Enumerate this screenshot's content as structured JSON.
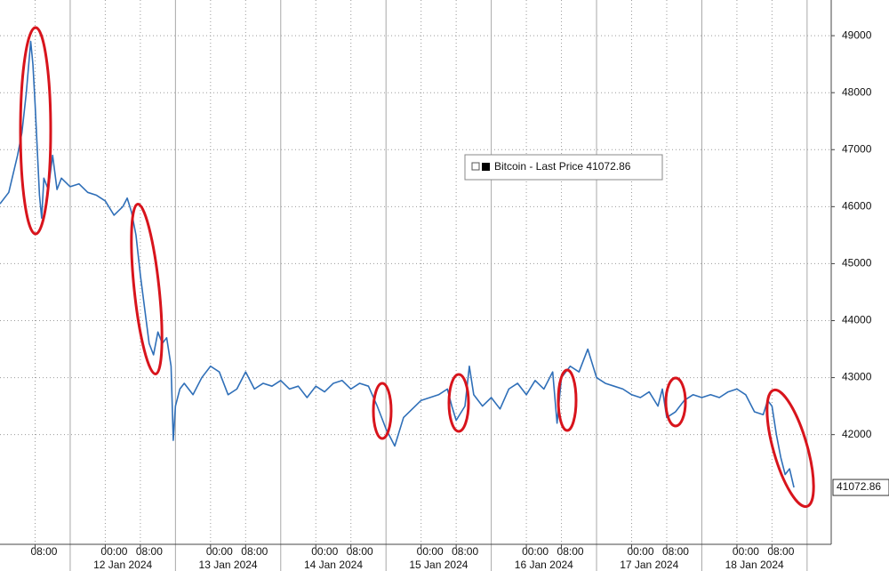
{
  "chart_data": {
    "type": "line",
    "x": [
      "2024-01-11 00:00",
      "2024-01-11 02:00",
      "2024-01-11 04:00",
      "2024-01-11 05:00",
      "2024-01-11 06:00",
      "2024-01-11 07:00",
      "2024-01-11 07:30",
      "2024-01-11 08:00",
      "2024-01-11 09:00",
      "2024-01-11 09:30",
      "2024-01-11 10:00",
      "2024-01-11 11:00",
      "2024-01-11 12:00",
      "2024-01-11 13:00",
      "2024-01-11 14:00",
      "2024-01-11 16:00",
      "2024-01-11 18:00",
      "2024-01-11 20:00",
      "2024-01-11 22:00",
      "2024-01-12 00:00",
      "2024-01-12 02:00",
      "2024-01-12 04:00",
      "2024-01-12 05:00",
      "2024-01-12 06:00",
      "2024-01-12 07:00",
      "2024-01-12 08:00",
      "2024-01-12 09:00",
      "2024-01-12 10:00",
      "2024-01-12 11:00",
      "2024-01-12 12:00",
      "2024-01-12 13:00",
      "2024-01-12 14:00",
      "2024-01-12 15:00",
      "2024-01-12 15:30",
      "2024-01-12 16:00",
      "2024-01-12 17:00",
      "2024-01-12 18:00",
      "2024-01-12 20:00",
      "2024-01-12 22:00",
      "2024-01-13 00:00",
      "2024-01-13 02:00",
      "2024-01-13 04:00",
      "2024-01-13 06:00",
      "2024-01-13 08:00",
      "2024-01-13 10:00",
      "2024-01-13 12:00",
      "2024-01-13 14:00",
      "2024-01-13 16:00",
      "2024-01-13 18:00",
      "2024-01-13 20:00",
      "2024-01-13 22:00",
      "2024-01-14 00:00",
      "2024-01-14 02:00",
      "2024-01-14 04:00",
      "2024-01-14 06:00",
      "2024-01-14 08:00",
      "2024-01-14 10:00",
      "2024-01-14 12:00",
      "2024-01-14 14:00",
      "2024-01-14 16:00",
      "2024-01-14 18:00",
      "2024-01-14 20:00",
      "2024-01-14 22:00",
      "2024-01-15 00:00",
      "2024-01-15 02:00",
      "2024-01-15 04:00",
      "2024-01-15 06:00",
      "2024-01-15 07:00",
      "2024-01-15 08:00",
      "2024-01-15 10:00",
      "2024-01-15 11:00",
      "2024-01-15 12:00",
      "2024-01-15 14:00",
      "2024-01-15 16:00",
      "2024-01-15 18:00",
      "2024-01-15 20:00",
      "2024-01-15 22:00",
      "2024-01-16 00:00",
      "2024-01-16 02:00",
      "2024-01-16 04:00",
      "2024-01-16 06:00",
      "2024-01-16 07:00",
      "2024-01-16 08:00",
      "2024-01-16 10:00",
      "2024-01-16 12:00",
      "2024-01-16 14:00",
      "2024-01-16 16:00",
      "2024-01-16 18:00",
      "2024-01-16 20:00",
      "2024-01-16 22:00",
      "2024-01-17 00:00",
      "2024-01-17 02:00",
      "2024-01-17 04:00",
      "2024-01-17 06:00",
      "2024-01-17 07:00",
      "2024-01-17 08:00",
      "2024-01-17 10:00",
      "2024-01-17 12:00",
      "2024-01-17 14:00",
      "2024-01-17 16:00",
      "2024-01-17 18:00",
      "2024-01-17 20:00",
      "2024-01-17 22:00",
      "2024-01-18 00:00",
      "2024-01-18 02:00",
      "2024-01-18 04:00",
      "2024-01-18 06:00",
      "2024-01-18 07:00",
      "2024-01-18 08:00",
      "2024-01-18 09:00",
      "2024-01-18 10:00",
      "2024-01-18 11:00",
      "2024-01-18 12:00",
      "2024-01-18 13:00"
    ],
    "series": [
      {
        "name": "Bitcoin - Last Price",
        "color": "#2f6fb8",
        "values": [
          46050,
          46250,
          46900,
          47300,
          48000,
          48900,
          48500,
          47800,
          46200,
          45800,
          46500,
          46300,
          46900,
          46300,
          46500,
          46350,
          46400,
          46250,
          46200,
          46100,
          45850,
          46000,
          46150,
          45900,
          45500,
          44800,
          44200,
          43600,
          43400,
          43800,
          43600,
          43700,
          43200,
          41900,
          42500,
          42800,
          42900,
          42700,
          43000,
          43200,
          43100,
          42700,
          42800,
          43100,
          42800,
          42900,
          42850,
          42950,
          42800,
          42850,
          42650,
          42850,
          42750,
          42900,
          42950,
          42800,
          42900,
          42850,
          42500,
          42100,
          41800,
          42300,
          42450,
          42600,
          42650,
          42700,
          42800,
          42500,
          42250,
          42500,
          43200,
          42700,
          42500,
          42650,
          42450,
          42800,
          42900,
          42700,
          42950,
          42800,
          43100,
          42200,
          43000,
          43200,
          43100,
          43500,
          43000,
          42900,
          42850,
          42800,
          42700,
          42650,
          42750,
          42500,
          42800,
          42300,
          42400,
          42600,
          42700,
          42650,
          42700,
          42650,
          42750,
          42800,
          42700,
          42400,
          42350,
          42600,
          42500,
          42000,
          41600,
          41300,
          41400,
          41072.86
        ]
      }
    ],
    "xlim": [
      "2024-01-11 00:00",
      "2024-01-18 21:30"
    ],
    "ylim": [
      40075,
      49626
    ],
    "yticks": [
      42000,
      43000,
      44000,
      45000,
      46000,
      47000,
      48000,
      49000
    ],
    "xticks": [
      {
        "value": "2024-01-11 08:00",
        "label": "08:00"
      },
      {
        "value": "2024-01-12 00:00",
        "label": "00:00"
      },
      {
        "value": "2024-01-12 08:00",
        "label": "08:00"
      },
      {
        "value": "2024-01-13 00:00",
        "label": "00:00"
      },
      {
        "value": "2024-01-13 08:00",
        "label": "08:00"
      },
      {
        "value": "2024-01-14 00:00",
        "label": "00:00"
      },
      {
        "value": "2024-01-14 08:00",
        "label": "08:00"
      },
      {
        "value": "2024-01-15 00:00",
        "label": "00:00"
      },
      {
        "value": "2024-01-15 08:00",
        "label": "08:00"
      },
      {
        "value": "2024-01-16 00:00",
        "label": "00:00"
      },
      {
        "value": "2024-01-16 08:00",
        "label": "08:00"
      },
      {
        "value": "2024-01-17 00:00",
        "label": "00:00"
      },
      {
        "value": "2024-01-17 08:00",
        "label": "08:00"
      },
      {
        "value": "2024-01-18 00:00",
        "label": "00:00"
      },
      {
        "value": "2024-01-18 08:00",
        "label": "08:00"
      }
    ],
    "date_labels": [
      {
        "value": "2024-01-12 00:00",
        "label": "12 Jan 2024"
      },
      {
        "value": "2024-01-13 00:00",
        "label": "13 Jan 2024"
      },
      {
        "value": "2024-01-14 00:00",
        "label": "14 Jan 2024"
      },
      {
        "value": "2024-01-15 00:00",
        "label": "15 Jan 2024"
      },
      {
        "value": "2024-01-16 00:00",
        "label": "16 Jan 2024"
      },
      {
        "value": "2024-01-17 00:00",
        "label": "17 Jan 2024"
      },
      {
        "value": "2024-01-18 00:00",
        "label": "18 Jan 2024"
      }
    ],
    "session_separators": [
      "2024-01-11 16:00",
      "2024-01-12 16:00",
      "2024-01-13 16:00",
      "2024-01-14 16:00",
      "2024-01-15 16:00",
      "2024-01-16 16:00",
      "2024-01-17 16:00",
      "2024-01-18 16:00"
    ],
    "grid": true,
    "legend": "top-center"
  }
}
